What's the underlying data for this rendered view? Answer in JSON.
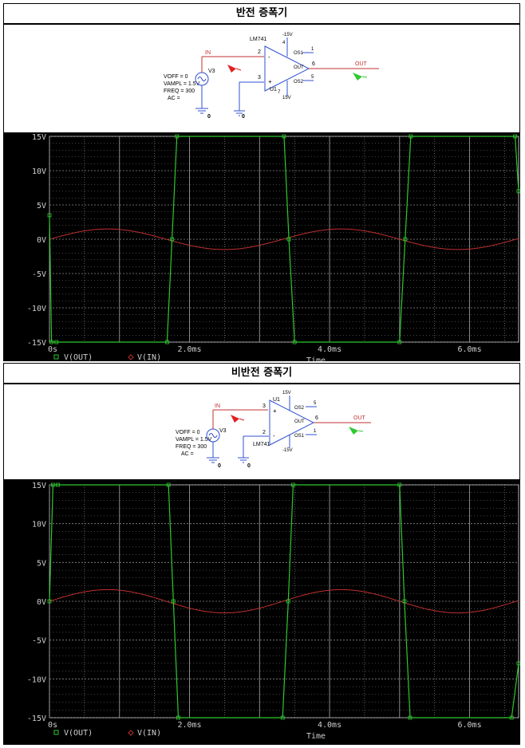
{
  "sections": [
    {
      "title": "반전 증폭기",
      "schematic": {
        "opamp_name": "LM741",
        "opamp_ref": "U1",
        "source_ref": "V3",
        "source_params": [
          "VOFF = 0",
          "VAMPL = 1.5V",
          "FREQ = 300",
          "AC ="
        ],
        "net_in": "IN",
        "net_out": "OUT",
        "pin_inv": "2",
        "pin_noninv": "3",
        "pin_out": "6",
        "pin_vneg": "4",
        "pin_vpos": "7",
        "pin_os1": "1",
        "pin_os2": "5",
        "label_os1": "OS1",
        "label_os2": "OS2",
        "label_out": "OUT",
        "supply_top": "-15V",
        "supply_bottom": "15V",
        "ground_1": "0",
        "ground_2": "0",
        "sign_inv": "-",
        "sign_noninv": "+"
      }
    },
    {
      "title": "비반전 증폭기",
      "schematic": {
        "opamp_name": "LM741",
        "opamp_ref": "U1",
        "source_ref": "V3",
        "source_params": [
          "VOFF = 0",
          "VAMPL = 1.5V",
          "FREQ = 300",
          "AC ="
        ],
        "net_in": "IN",
        "net_out": "OUT",
        "pin_inv": "2",
        "pin_noninv": "3",
        "pin_out": "6",
        "pin_vneg": "4",
        "pin_vpos": "7",
        "pin_os1": "1",
        "pin_os2": "5",
        "label_os1": "OS1",
        "label_os2": "OS2",
        "label_out": "OUT",
        "supply_top": "15V",
        "supply_bottom": "-15V",
        "ground_1": "0",
        "ground_2": "0",
        "sign_inv": "-",
        "sign_noninv": "+"
      }
    }
  ],
  "chart_data": [
    {
      "type": "line",
      "x_ticks": [
        "0s",
        "2.0ms",
        "4.0ms",
        "6.0ms"
      ],
      "y_ticks": [
        "15V",
        "10V",
        "5V",
        "0V",
        "-5V",
        "-10V",
        "-15V"
      ],
      "xlabel": "Time",
      "xlim_ms": [
        0,
        6.7
      ],
      "ylim": [
        -15,
        15
      ],
      "grid": true,
      "series": [
        {
          "name": "V(OUT)",
          "color": "#2ec82e",
          "marker": "square",
          "x": [
            0,
            0.03,
            0.1,
            1.68,
            1.75,
            1.82,
            3.35,
            3.42,
            3.5,
            5.0,
            5.08,
            5.16,
            6.65,
            6.7
          ],
          "y": [
            3.5,
            -15,
            -15,
            -15,
            0,
            15,
            15,
            0,
            -15,
            -15,
            0,
            15,
            15,
            7
          ]
        },
        {
          "name": "V(IN)",
          "color": "#c03030",
          "marker": "diamond",
          "amplitude": 1.5,
          "frequency_hz": 300
        }
      ]
    },
    {
      "type": "line",
      "x_ticks": [
        "0s",
        "2.0ms",
        "4.0ms",
        "6.0ms"
      ],
      "y_ticks": [
        "15V",
        "10V",
        "5V",
        "0V",
        "-5V",
        "-10V",
        "-15V"
      ],
      "xlabel": "Time",
      "xlim_ms": [
        0,
        6.7
      ],
      "ylim": [
        -15,
        15
      ],
      "grid": true,
      "series": [
        {
          "name": "V(OUT)",
          "color": "#2ec82e",
          "marker": "square",
          "x": [
            0,
            0.05,
            0.12,
            1.7,
            1.77,
            1.84,
            3.33,
            3.41,
            3.48,
            5.0,
            5.07,
            5.15,
            6.6,
            6.7
          ],
          "y": [
            0,
            15,
            15,
            15,
            0,
            -15,
            -15,
            0,
            15,
            15,
            0,
            -15,
            -15,
            -8
          ]
        },
        {
          "name": "V(IN)",
          "color": "#c03030",
          "marker": "diamond",
          "amplitude": 1.5,
          "frequency_hz": 300
        }
      ]
    }
  ]
}
